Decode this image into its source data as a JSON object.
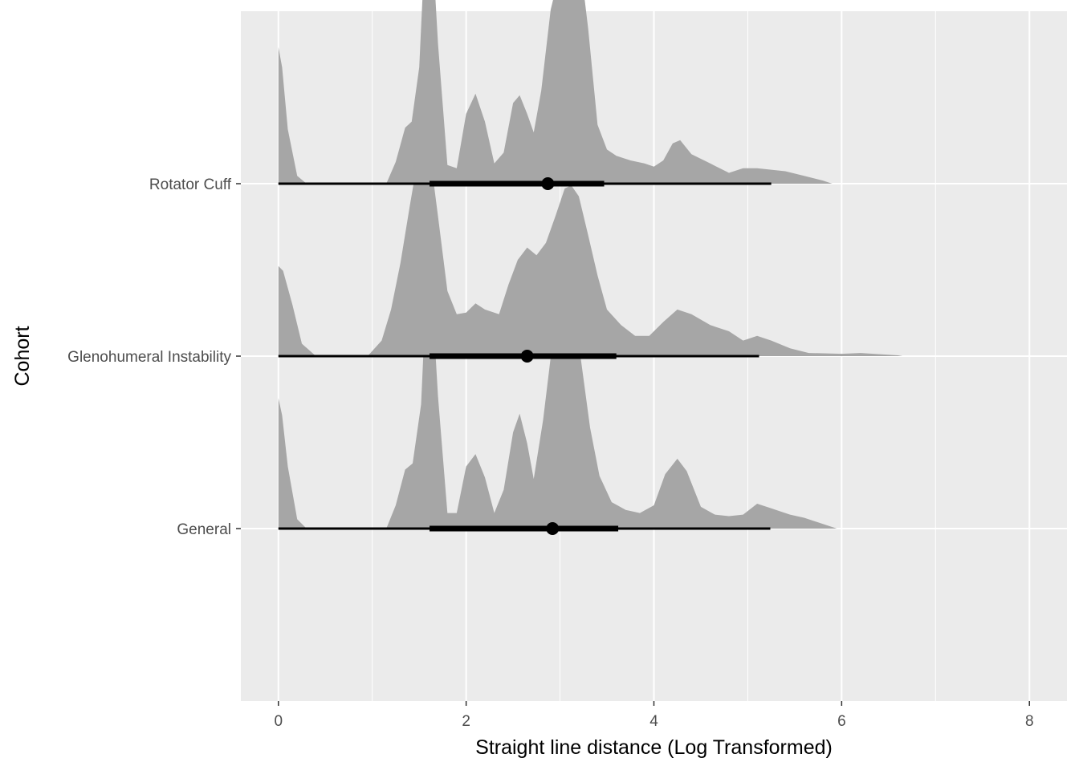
{
  "chart_data": {
    "type": "halfeye",
    "title": "",
    "xlabel": "Straight line distance (Log Transformed)",
    "ylabel": "Cohort",
    "xlim": [
      -0.4,
      8.4
    ],
    "x_ticks": [
      0,
      2,
      4,
      6,
      8
    ],
    "x_minor_ticks": [
      1,
      3,
      5,
      7
    ],
    "categories": [
      "General",
      "Glenohumeral Instability",
      "Rotator Cuff"
    ],
    "grid": true,
    "legend": "none",
    "colors": {
      "panel": "#ebebeb",
      "grid": "#ffffff",
      "density_fill": "#a6a6a6",
      "interval": "#000000"
    },
    "series": [
      {
        "category": "Rotator Cuff",
        "point": 2.87,
        "interval_66": [
          1.61,
          3.47
        ],
        "interval_95": [
          0.0,
          5.25
        ],
        "density": [
          [
            0.0,
            0.88
          ],
          [
            0.04,
            0.75
          ],
          [
            0.1,
            0.35
          ],
          [
            0.2,
            0.05
          ],
          [
            0.3,
            0.0
          ],
          [
            1.15,
            0.0
          ],
          [
            1.25,
            0.14
          ],
          [
            1.35,
            0.36
          ],
          [
            1.42,
            0.4
          ],
          [
            1.5,
            0.75
          ],
          [
            1.58,
            1.78
          ],
          [
            1.62,
            1.75
          ],
          [
            1.7,
            0.9
          ],
          [
            1.8,
            0.12
          ],
          [
            1.9,
            0.1
          ],
          [
            2.0,
            0.45
          ],
          [
            2.1,
            0.58
          ],
          [
            2.2,
            0.4
          ],
          [
            2.3,
            0.13
          ],
          [
            2.4,
            0.2
          ],
          [
            2.5,
            0.52
          ],
          [
            2.57,
            0.57
          ],
          [
            2.65,
            0.45
          ],
          [
            2.72,
            0.33
          ],
          [
            2.8,
            0.6
          ],
          [
            2.9,
            1.12
          ],
          [
            3.0,
            1.37
          ],
          [
            3.12,
            1.57
          ],
          [
            3.2,
            1.5
          ],
          [
            3.3,
            1.0
          ],
          [
            3.4,
            0.38
          ],
          [
            3.5,
            0.22
          ],
          [
            3.6,
            0.18
          ],
          [
            3.75,
            0.15
          ],
          [
            3.9,
            0.13
          ],
          [
            4.0,
            0.11
          ],
          [
            4.1,
            0.15
          ],
          [
            4.2,
            0.26
          ],
          [
            4.28,
            0.28
          ],
          [
            4.4,
            0.19
          ],
          [
            4.6,
            0.13
          ],
          [
            4.8,
            0.07
          ],
          [
            4.95,
            0.1
          ],
          [
            5.1,
            0.1
          ],
          [
            5.25,
            0.09
          ],
          [
            5.4,
            0.08
          ],
          [
            5.6,
            0.05
          ],
          [
            5.8,
            0.02
          ],
          [
            5.9,
            0.0
          ],
          [
            8.0,
            0.0
          ]
        ]
      },
      {
        "category": "Glenohumeral Instability",
        "point": 2.65,
        "interval_66": [
          1.61,
          3.6
        ],
        "interval_95": [
          0.0,
          5.12
        ],
        "density": [
          [
            0.0,
            0.58
          ],
          [
            0.05,
            0.55
          ],
          [
            0.15,
            0.33
          ],
          [
            0.25,
            0.08
          ],
          [
            0.4,
            0.0
          ],
          [
            0.95,
            0.0
          ],
          [
            1.1,
            0.1
          ],
          [
            1.2,
            0.3
          ],
          [
            1.3,
            0.6
          ],
          [
            1.4,
            0.97
          ],
          [
            1.48,
            1.25
          ],
          [
            1.55,
            1.34
          ],
          [
            1.62,
            1.28
          ],
          [
            1.7,
            0.9
          ],
          [
            1.8,
            0.42
          ],
          [
            1.9,
            0.27
          ],
          [
            2.0,
            0.28
          ],
          [
            2.1,
            0.34
          ],
          [
            2.2,
            0.3
          ],
          [
            2.35,
            0.27
          ],
          [
            2.45,
            0.46
          ],
          [
            2.55,
            0.62
          ],
          [
            2.65,
            0.7
          ],
          [
            2.75,
            0.65
          ],
          [
            2.85,
            0.73
          ],
          [
            2.95,
            0.9
          ],
          [
            3.05,
            1.08
          ],
          [
            3.12,
            1.1
          ],
          [
            3.2,
            1.03
          ],
          [
            3.3,
            0.78
          ],
          [
            3.4,
            0.52
          ],
          [
            3.5,
            0.3
          ],
          [
            3.65,
            0.2
          ],
          [
            3.8,
            0.13
          ],
          [
            3.95,
            0.13
          ],
          [
            4.1,
            0.22
          ],
          [
            4.25,
            0.3
          ],
          [
            4.4,
            0.27
          ],
          [
            4.6,
            0.2
          ],
          [
            4.8,
            0.16
          ],
          [
            4.95,
            0.1
          ],
          [
            5.1,
            0.13
          ],
          [
            5.25,
            0.1
          ],
          [
            5.45,
            0.05
          ],
          [
            5.65,
            0.02
          ],
          [
            6.0,
            0.015
          ],
          [
            6.2,
            0.02
          ],
          [
            6.6,
            0.005
          ],
          [
            6.65,
            0.0
          ],
          [
            8.0,
            0.0
          ]
        ]
      },
      {
        "category": "General",
        "point": 2.92,
        "interval_66": [
          1.61,
          3.62
        ],
        "interval_95": [
          0.0,
          5.24
        ],
        "density": [
          [
            0.0,
            0.84
          ],
          [
            0.04,
            0.73
          ],
          [
            0.1,
            0.4
          ],
          [
            0.2,
            0.06
          ],
          [
            0.3,
            0.0
          ],
          [
            1.15,
            0.0
          ],
          [
            1.25,
            0.15
          ],
          [
            1.35,
            0.38
          ],
          [
            1.43,
            0.42
          ],
          [
            1.52,
            0.8
          ],
          [
            1.58,
            1.6
          ],
          [
            1.63,
            1.57
          ],
          [
            1.7,
            0.85
          ],
          [
            1.8,
            0.1
          ],
          [
            1.9,
            0.1
          ],
          [
            2.0,
            0.4
          ],
          [
            2.1,
            0.48
          ],
          [
            2.2,
            0.33
          ],
          [
            2.3,
            0.1
          ],
          [
            2.4,
            0.25
          ],
          [
            2.5,
            0.62
          ],
          [
            2.57,
            0.74
          ],
          [
            2.65,
            0.55
          ],
          [
            2.72,
            0.32
          ],
          [
            2.82,
            0.7
          ],
          [
            2.92,
            1.2
          ],
          [
            3.02,
            1.4
          ],
          [
            3.12,
            1.38
          ],
          [
            3.22,
            1.1
          ],
          [
            3.32,
            0.65
          ],
          [
            3.42,
            0.34
          ],
          [
            3.55,
            0.17
          ],
          [
            3.7,
            0.12
          ],
          [
            3.85,
            0.1
          ],
          [
            4.0,
            0.15
          ],
          [
            4.12,
            0.35
          ],
          [
            4.25,
            0.45
          ],
          [
            4.35,
            0.37
          ],
          [
            4.5,
            0.14
          ],
          [
            4.65,
            0.09
          ],
          [
            4.8,
            0.08
          ],
          [
            4.95,
            0.09
          ],
          [
            5.1,
            0.16
          ],
          [
            5.25,
            0.13
          ],
          [
            5.45,
            0.09
          ],
          [
            5.6,
            0.07
          ],
          [
            5.8,
            0.03
          ],
          [
            5.95,
            0.0
          ],
          [
            8.0,
            0.0
          ]
        ]
      }
    ]
  }
}
